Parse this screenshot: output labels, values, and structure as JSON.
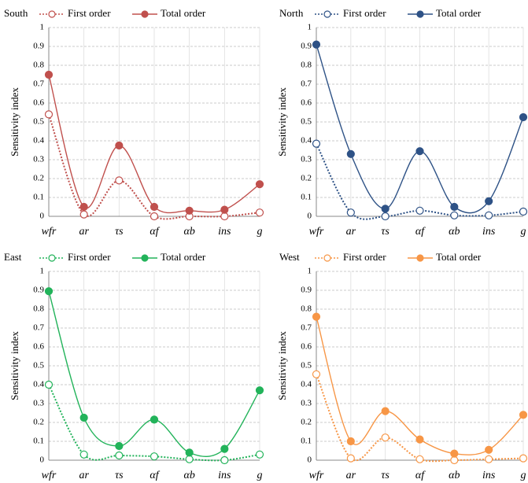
{
  "chart_data": [
    {
      "type": "line",
      "title": "South",
      "ylabel": "Sensitivity index",
      "categories": [
        "wfr",
        "ar",
        "τs",
        "αf",
        "αb",
        "ins",
        "g"
      ],
      "series": [
        {
          "name": "First order",
          "color": "#c0504d",
          "linestyle": "dotted",
          "values": [
            0.54,
            0.01,
            0.19,
            0.0,
            0.0,
            0.0,
            0.02
          ]
        },
        {
          "name": "Total order",
          "color": "#c0504d",
          "linestyle": "solid",
          "values": [
            0.75,
            0.05,
            0.375,
            0.05,
            0.03,
            0.035,
            0.17
          ]
        }
      ],
      "ylim": [
        0,
        1
      ],
      "yticks": [
        0,
        0.1,
        0.2,
        0.3,
        0.4,
        0.5,
        0.6,
        0.7,
        0.8,
        0.9,
        1
      ],
      "grid": true
    },
    {
      "type": "line",
      "title": "North",
      "ylabel": "Sensitivity index",
      "categories": [
        "wfr",
        "ar",
        "τs",
        "αf",
        "αb",
        "ins",
        "g"
      ],
      "series": [
        {
          "name": "First order",
          "color": "#2e5286",
          "linestyle": "dotted",
          "values": [
            0.385,
            0.02,
            0.0,
            0.03,
            0.005,
            0.005,
            0.025
          ]
        },
        {
          "name": "Total order",
          "color": "#2e5286",
          "linestyle": "solid",
          "values": [
            0.91,
            0.33,
            0.04,
            0.345,
            0.05,
            0.08,
            0.525
          ]
        }
      ],
      "ylim": [
        0,
        1
      ],
      "yticks": [
        0,
        0.1,
        0.2,
        0.3,
        0.4,
        0.5,
        0.6,
        0.7,
        0.8,
        0.9,
        1
      ],
      "grid": true
    },
    {
      "type": "line",
      "title": "East",
      "ylabel": "Sensitivity index",
      "categories": [
        "wfr",
        "ar",
        "τs",
        "αf",
        "αb",
        "ins",
        "g"
      ],
      "series": [
        {
          "name": "First order",
          "color": "#22b35a",
          "linestyle": "dotted",
          "values": [
            0.4,
            0.03,
            0.025,
            0.02,
            0.005,
            0.0,
            0.03
          ]
        },
        {
          "name": "Total order",
          "color": "#22b35a",
          "linestyle": "solid",
          "values": [
            0.895,
            0.225,
            0.075,
            0.215,
            0.04,
            0.06,
            0.37
          ]
        }
      ],
      "ylim": [
        0,
        1
      ],
      "yticks": [
        0,
        0.1,
        0.2,
        0.3,
        0.4,
        0.5,
        0.6,
        0.7,
        0.8,
        0.9,
        1
      ],
      "grid": true
    },
    {
      "type": "line",
      "title": "West",
      "ylabel": "Sensitivity index",
      "categories": [
        "wfr",
        "ar",
        "τs",
        "αf",
        "αb",
        "ins",
        "g"
      ],
      "series": [
        {
          "name": "First order",
          "color": "#f79646",
          "linestyle": "dotted",
          "values": [
            0.455,
            0.01,
            0.12,
            0.005,
            0.0,
            0.005,
            0.01
          ]
        },
        {
          "name": "Total order",
          "color": "#f79646",
          "linestyle": "solid",
          "values": [
            0.76,
            0.1,
            0.26,
            0.11,
            0.035,
            0.055,
            0.24
          ]
        }
      ],
      "ylim": [
        0,
        1
      ],
      "yticks": [
        0,
        0.1,
        0.2,
        0.3,
        0.4,
        0.5,
        0.6,
        0.7,
        0.8,
        0.9,
        1
      ],
      "grid": true
    }
  ]
}
